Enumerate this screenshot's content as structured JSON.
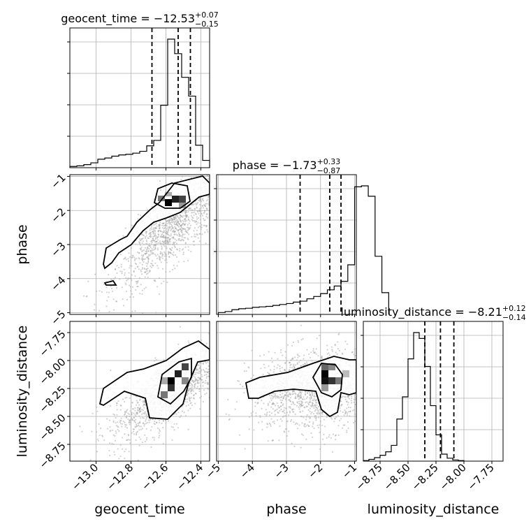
{
  "chart_data": {
    "type": "corner",
    "parameters": [
      {
        "key": "geocent_time",
        "label": "geocent_time",
        "range": [
          -13.15,
          -12.35
        ],
        "ticks": [
          -13.0,
          -12.8,
          -12.6,
          -12.4
        ],
        "tick_labels": [
          "−13.0",
          "−12.8",
          "−12.6",
          "−12.4"
        ],
        "median": -12.53,
        "lower": -12.68,
        "upper": -12.46
      },
      {
        "key": "phase",
        "label": "phase",
        "range": [
          -5.05,
          -0.95
        ],
        "ticks": [
          -5,
          -4,
          -3,
          -2,
          -1
        ],
        "tick_labels": [
          "−5",
          "−4",
          "−3",
          "−2",
          "−1"
        ],
        "median": -1.73,
        "lower": -2.6,
        "upper": -1.4
      },
      {
        "key": "luminosity_distance",
        "label": "luminosity_distance",
        "range": [
          -8.9,
          -7.65
        ],
        "ticks": [
          -8.75,
          -8.5,
          -8.25,
          -8.0,
          -7.75
        ],
        "tick_labels": [
          "−8.75",
          "−8.50",
          "−8.25",
          "−8.00",
          "−7.75"
        ],
        "median": -8.21,
        "lower": -8.35,
        "upper": -8.09
      }
    ],
    "titles": [
      {
        "name": "geocent_time",
        "eq": " = −12.53",
        "sup": "+0.07",
        "sub": "−0.15"
      },
      {
        "name": "phase",
        "eq": " = −1.73",
        "sup": "+0.33",
        "sub": "−0.87"
      },
      {
        "name": "luminosity_distance",
        "eq": " = −8.21",
        "sup": "+0.12",
        "sub": "−0.14"
      }
    ],
    "histograms": [
      {
        "param": "geocent_time",
        "bin_edges_start": -13.15,
        "bin_width": 0.04,
        "counts": [
          2,
          3,
          5,
          8,
          14,
          16,
          19,
          21,
          22,
          24,
          27,
          36,
          45,
          103,
          212,
          188,
          149,
          118,
          37,
          12
        ]
      },
      {
        "param": "phase",
        "bin_edges_start": -5.0,
        "bin_width": 0.2,
        "counts": [
          4,
          6,
          10,
          12,
          13,
          15,
          16,
          17,
          19,
          21,
          23,
          26,
          28,
          33,
          38,
          44,
          52,
          60,
          70,
          105,
          270,
          272,
          250,
          123,
          46
        ]
      },
      {
        "param": "luminosity_distance",
        "bin_edges_start": -8.9,
        "bin_width": 0.05,
        "counts": [
          1,
          3,
          6,
          10,
          16,
          27,
          72,
          110,
          175,
          220,
          210,
          162,
          95,
          45,
          12,
          5,
          2,
          1
        ]
      }
    ],
    "grid": true,
    "legend": "none"
  }
}
